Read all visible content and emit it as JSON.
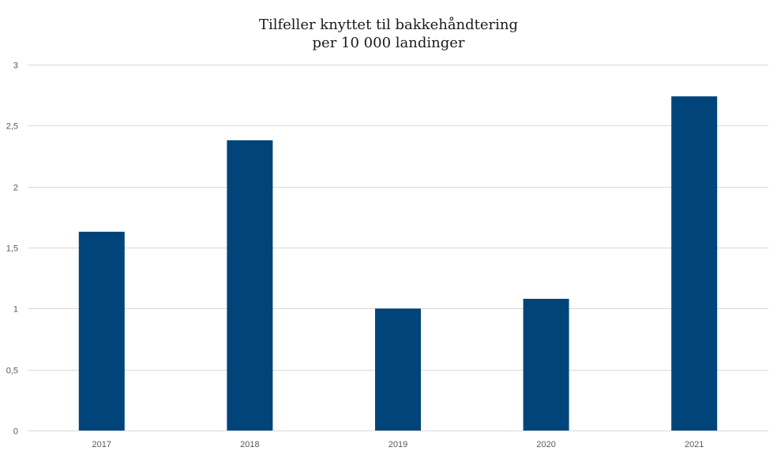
{
  "chart_data": {
    "type": "bar",
    "title_lines": [
      "Tilfeller knyttet til bakkehåndtering",
      "per 10 000 landinger"
    ],
    "categories": [
      "2017",
      "2018",
      "2019",
      "2020",
      "2021"
    ],
    "values": [
      1.63,
      2.38,
      1.0,
      1.08,
      2.74
    ],
    "ylim": [
      0,
      3
    ],
    "yticks": [
      0,
      0.5,
      1,
      1.5,
      2,
      2.5,
      3
    ],
    "ytick_labels": [
      "0",
      "0,5",
      "1",
      "1,5",
      "2",
      "2,5",
      "3"
    ],
    "grid": true,
    "legend": "none",
    "bar_color": "#004479",
    "grid_color": "#d9d9d9"
  }
}
